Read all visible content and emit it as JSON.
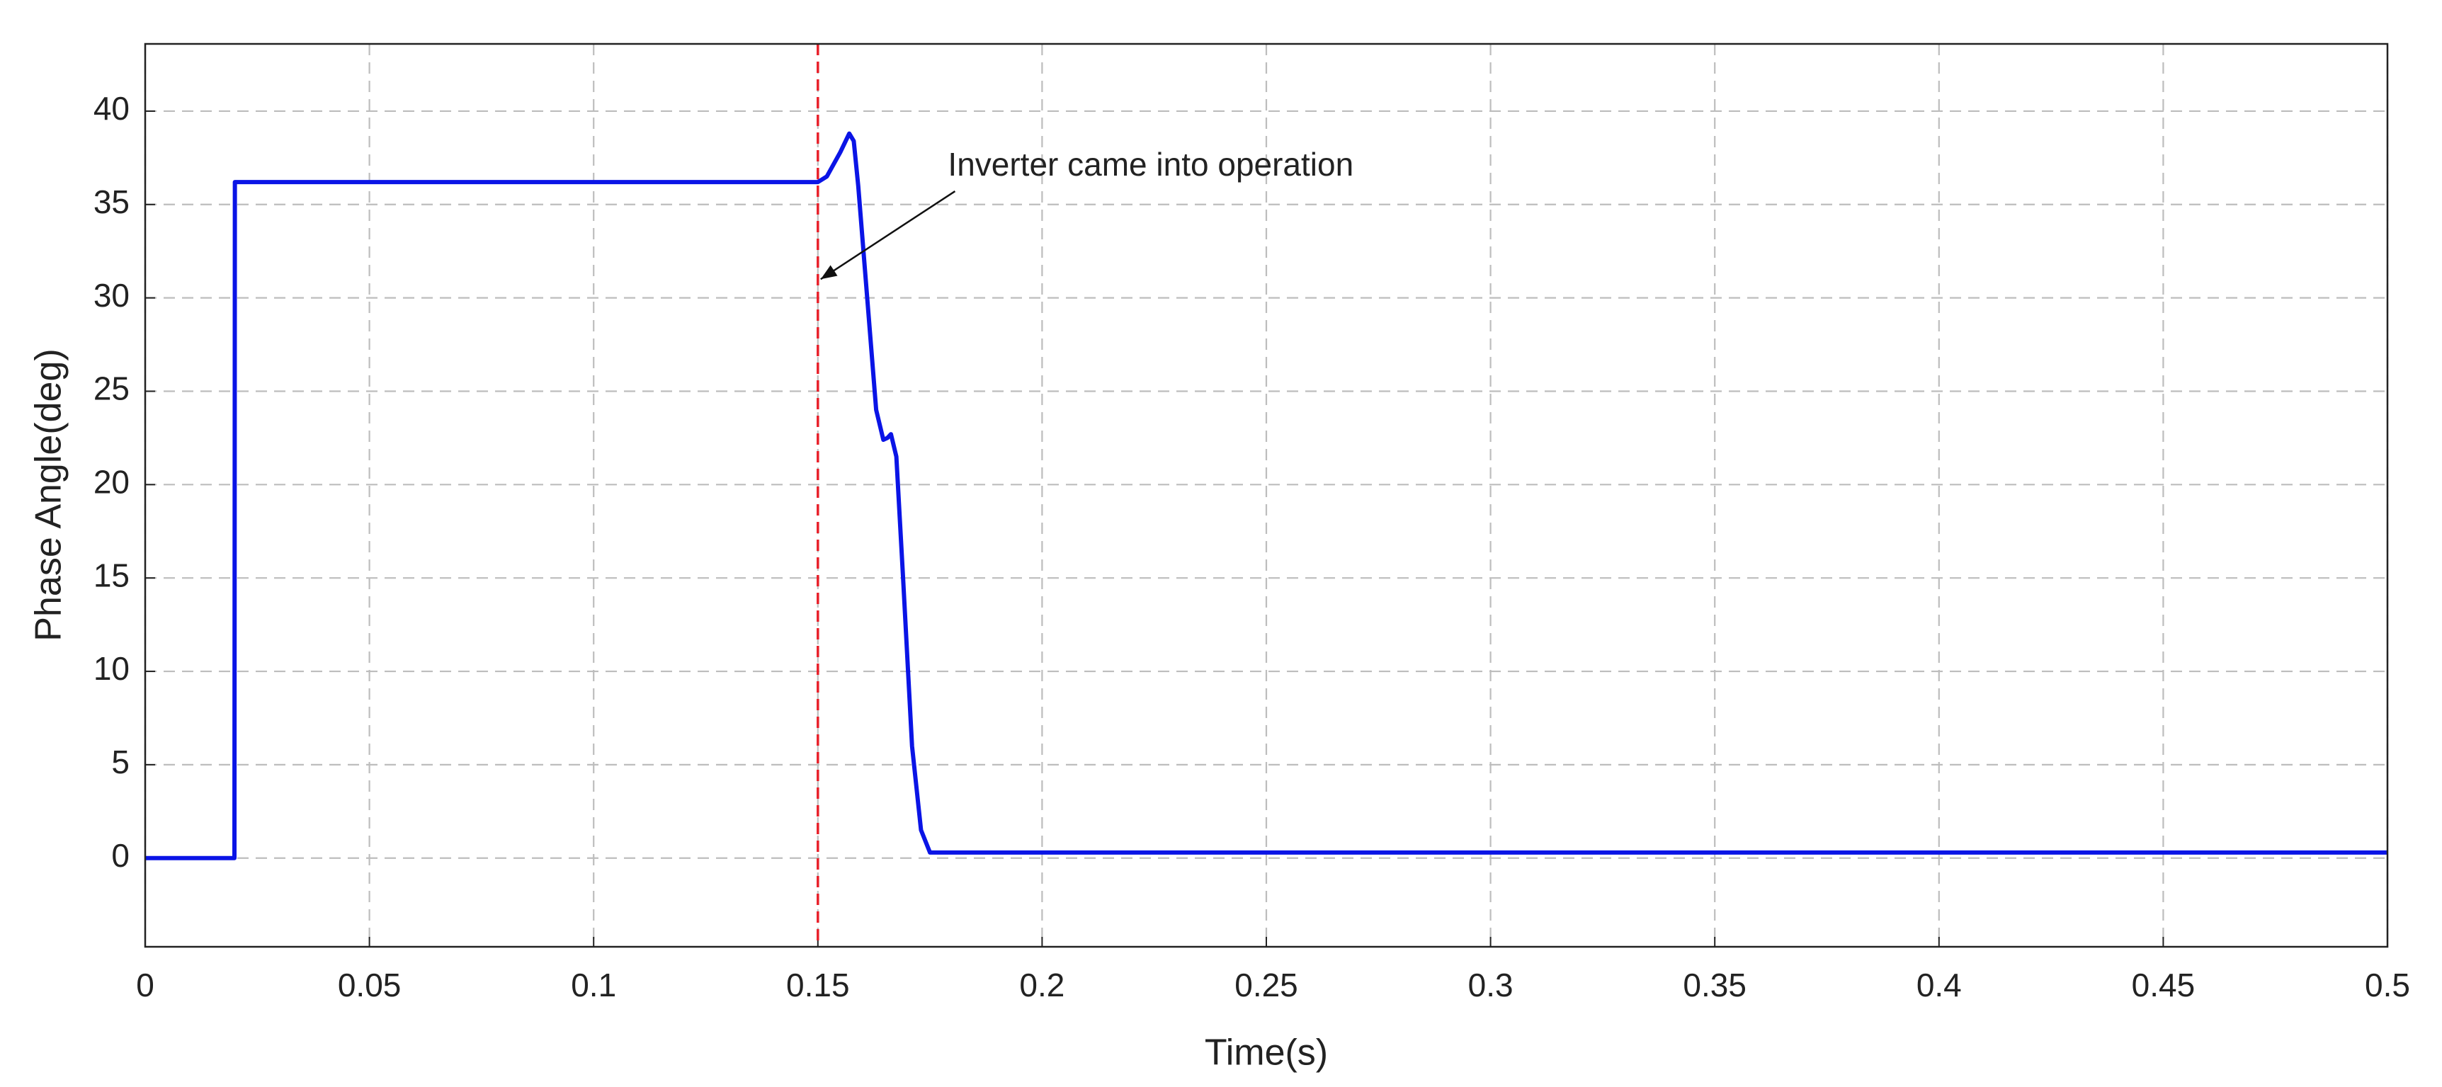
{
  "chart_data": {
    "type": "line",
    "x_label": "Time(s)",
    "y_label": "Phase Angle(deg)",
    "x": [
      0,
      0.0199,
      0.02,
      0.15,
      0.152,
      0.155,
      0.157,
      0.158,
      0.159,
      0.161,
      0.163,
      0.1646,
      0.1655,
      0.1663,
      0.1675,
      0.169,
      0.171,
      0.173,
      0.175,
      0.5
    ],
    "values": [
      0,
      0,
      36.2,
      36.2,
      36.5,
      37.8,
      38.8,
      38.4,
      36,
      30,
      24,
      22.4,
      22.5,
      22.7,
      21.5,
      15,
      6,
      1.5,
      0.3,
      0.3
    ],
    "color": "#0a14e6",
    "xlim": [
      0,
      0.5
    ],
    "xticks": [
      0,
      0.05,
      0.1,
      0.15,
      0.2,
      0.25,
      0.3,
      0.35,
      0.4,
      0.45,
      0.5
    ],
    "ylim": [
      -4.75,
      43.6
    ],
    "yticks": [
      0,
      5,
      10,
      15,
      20,
      25,
      30,
      35,
      40
    ],
    "grid": true,
    "reference_line": {
      "x": 0.15,
      "color": "#e8202a"
    },
    "annotation": {
      "text": "Inverter came into operation",
      "xy": [
        0.15,
        31
      ],
      "xytext": [
        0.179,
        37
      ]
    }
  }
}
